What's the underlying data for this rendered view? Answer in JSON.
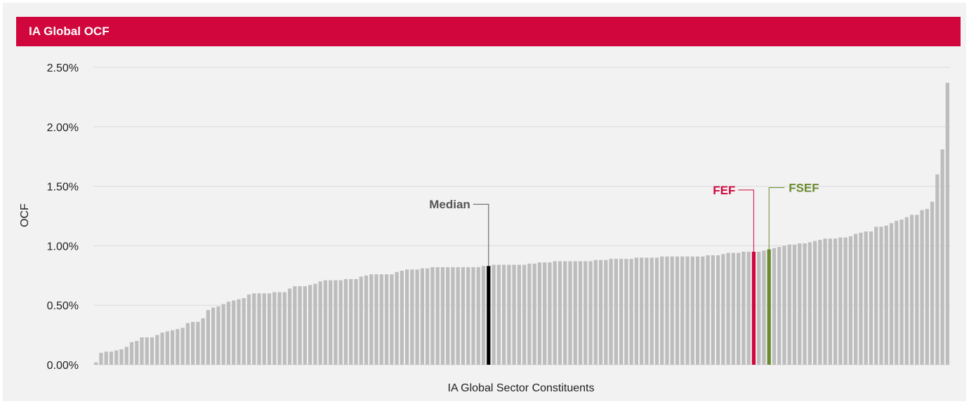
{
  "header": {
    "title": "IA Global OCF"
  },
  "chart_data": {
    "type": "bar",
    "title": "IA Global OCF",
    "xlabel": "IA Global Sector Constituents",
    "ylabel": "OCF",
    "ylim": [
      0,
      2.5
    ],
    "yticks": [
      "0.00%",
      "0.50%",
      "1.00%",
      "1.50%",
      "2.00%",
      "2.50%"
    ],
    "grid": true,
    "colors": {
      "default": "#bdbdbd",
      "median": "#000000",
      "fef": "#d0063c",
      "fsef": "#6b8a2e",
      "grid": "#d9d9d9"
    },
    "values": [
      0.02,
      0.1,
      0.11,
      0.11,
      0.12,
      0.13,
      0.15,
      0.19,
      0.2,
      0.23,
      0.23,
      0.23,
      0.25,
      0.27,
      0.28,
      0.29,
      0.3,
      0.31,
      0.35,
      0.36,
      0.36,
      0.39,
      0.46,
      0.48,
      0.49,
      0.51,
      0.53,
      0.54,
      0.55,
      0.56,
      0.59,
      0.6,
      0.6,
      0.6,
      0.6,
      0.61,
      0.61,
      0.61,
      0.64,
      0.66,
      0.66,
      0.66,
      0.67,
      0.68,
      0.7,
      0.71,
      0.71,
      0.71,
      0.71,
      0.72,
      0.72,
      0.72,
      0.74,
      0.75,
      0.76,
      0.76,
      0.76,
      0.76,
      0.76,
      0.78,
      0.79,
      0.8,
      0.8,
      0.8,
      0.81,
      0.81,
      0.82,
      0.82,
      0.82,
      0.82,
      0.82,
      0.82,
      0.82,
      0.82,
      0.82,
      0.82,
      0.83,
      0.83,
      0.84,
      0.84,
      0.84,
      0.84,
      0.84,
      0.84,
      0.84,
      0.85,
      0.85,
      0.86,
      0.86,
      0.86,
      0.87,
      0.87,
      0.87,
      0.87,
      0.87,
      0.87,
      0.87,
      0.87,
      0.88,
      0.88,
      0.88,
      0.89,
      0.89,
      0.89,
      0.89,
      0.89,
      0.9,
      0.9,
      0.9,
      0.9,
      0.9,
      0.91,
      0.91,
      0.91,
      0.91,
      0.91,
      0.91,
      0.91,
      0.91,
      0.91,
      0.92,
      0.92,
      0.92,
      0.93,
      0.94,
      0.94,
      0.94,
      0.95,
      0.95,
      0.95,
      0.95,
      0.96,
      0.97,
      0.98,
      0.99,
      1.0,
      1.01,
      1.01,
      1.02,
      1.02,
      1.03,
      1.04,
      1.05,
      1.06,
      1.06,
      1.06,
      1.07,
      1.07,
      1.08,
      1.1,
      1.11,
      1.12,
      1.12,
      1.16,
      1.16,
      1.17,
      1.19,
      1.21,
      1.22,
      1.24,
      1.26,
      1.26,
      1.3,
      1.31,
      1.37,
      1.6,
      1.81,
      2.37
    ],
    "highlights": [
      {
        "label": "Median",
        "index": 77,
        "color_key": "median",
        "side": "left"
      },
      {
        "label": "FEF",
        "index": 129,
        "color_key": "fef",
        "side": "left"
      },
      {
        "label": "FSEF",
        "index": 132,
        "color_key": "fsef",
        "side": "right"
      }
    ]
  }
}
